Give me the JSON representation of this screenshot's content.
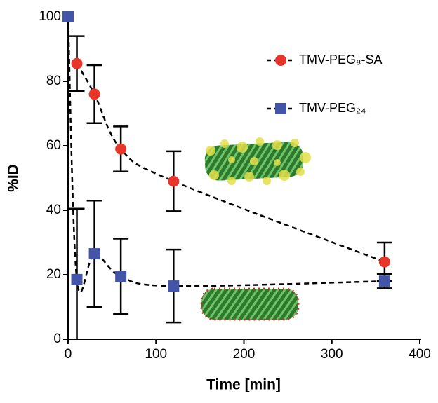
{
  "chart_data": {
    "type": "scatter",
    "x_label": "Time [min]",
    "y_label": "%ID",
    "xlim": [
      0,
      400
    ],
    "xticks": [
      0,
      100,
      200,
      300,
      400
    ],
    "ylim": [
      0,
      100
    ],
    "yticks": [
      0,
      20,
      40,
      60,
      80,
      100
    ],
    "series": [
      {
        "name": "TMV-PEG₈-SA",
        "color": "#e8352a",
        "marker": "circle",
        "x": [
          10,
          30,
          60,
          120,
          360
        ],
        "values": [
          85.5,
          76,
          59,
          49,
          24
        ],
        "errors": [
          8.5,
          9,
          7,
          9.3,
          6
        ]
      },
      {
        "name": "TMV-PEG₂₄",
        "color": "#4255a8",
        "marker": "square",
        "x": [
          0,
          10,
          30,
          60,
          120,
          360
        ],
        "values": [
          100,
          18.5,
          26.5,
          19.5,
          16.5,
          18
        ],
        "errors": [
          0,
          22,
          16.5,
          11.7,
          11.3,
          2.2
        ]
      }
    ]
  }
}
